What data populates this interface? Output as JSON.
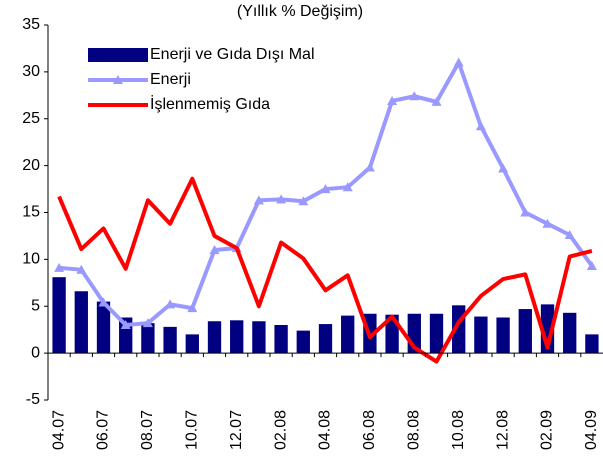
{
  "chart_data": {
    "type": "bar_line",
    "title": "(Yıllık % Değişim)",
    "categories": [
      "04.07",
      null,
      "06.07",
      null,
      "08.07",
      null,
      "10.07",
      null,
      "12.07",
      null,
      "02.08",
      null,
      "04.08",
      null,
      "06.08",
      null,
      "08.08",
      null,
      "10.08",
      null,
      "12.08",
      null,
      "02.09",
      null,
      "04.09"
    ],
    "series": [
      {
        "name": "Enerji ve Gıda Dışı Mal",
        "type": "bar",
        "color": "#000080",
        "values": [
          8.1,
          6.6,
          5.5,
          3.8,
          3.2,
          2.8,
          2.0,
          3.4,
          3.5,
          3.4,
          3.0,
          2.4,
          3.1,
          4.0,
          4.2,
          4.1,
          4.2,
          4.2,
          5.1,
          3.9,
          3.8,
          4.7,
          5.2,
          4.3,
          2.0
        ]
      },
      {
        "name": "Enerji",
        "type": "line",
        "marker": "triangle",
        "color": "#9999ff",
        "values": [
          9.1,
          8.9,
          5.4,
          3.0,
          3.2,
          5.2,
          4.8,
          11.0,
          11.2,
          16.3,
          16.4,
          16.2,
          17.5,
          17.7,
          19.8,
          26.9,
          27.4,
          26.8,
          31.0,
          24.2,
          19.7,
          15.0,
          13.8,
          12.6,
          9.3
        ]
      },
      {
        "name": "İşlenmemiş  Gıda",
        "type": "line",
        "color": "#ff0000",
        "values": [
          16.7,
          11.1,
          13.3,
          9.0,
          16.3,
          13.8,
          18.6,
          12.5,
          11.2,
          5.0,
          11.8,
          10.1,
          6.7,
          8.3,
          1.7,
          3.9,
          0.6,
          -0.9,
          3.3,
          6.1,
          7.9,
          8.4,
          0.6,
          10.3,
          10.9
        ]
      }
    ],
    "ylim": [
      -5,
      35
    ],
    "yticks": [
      -5,
      0,
      5,
      10,
      15,
      20,
      25,
      30,
      35
    ],
    "legend": "upper left"
  }
}
